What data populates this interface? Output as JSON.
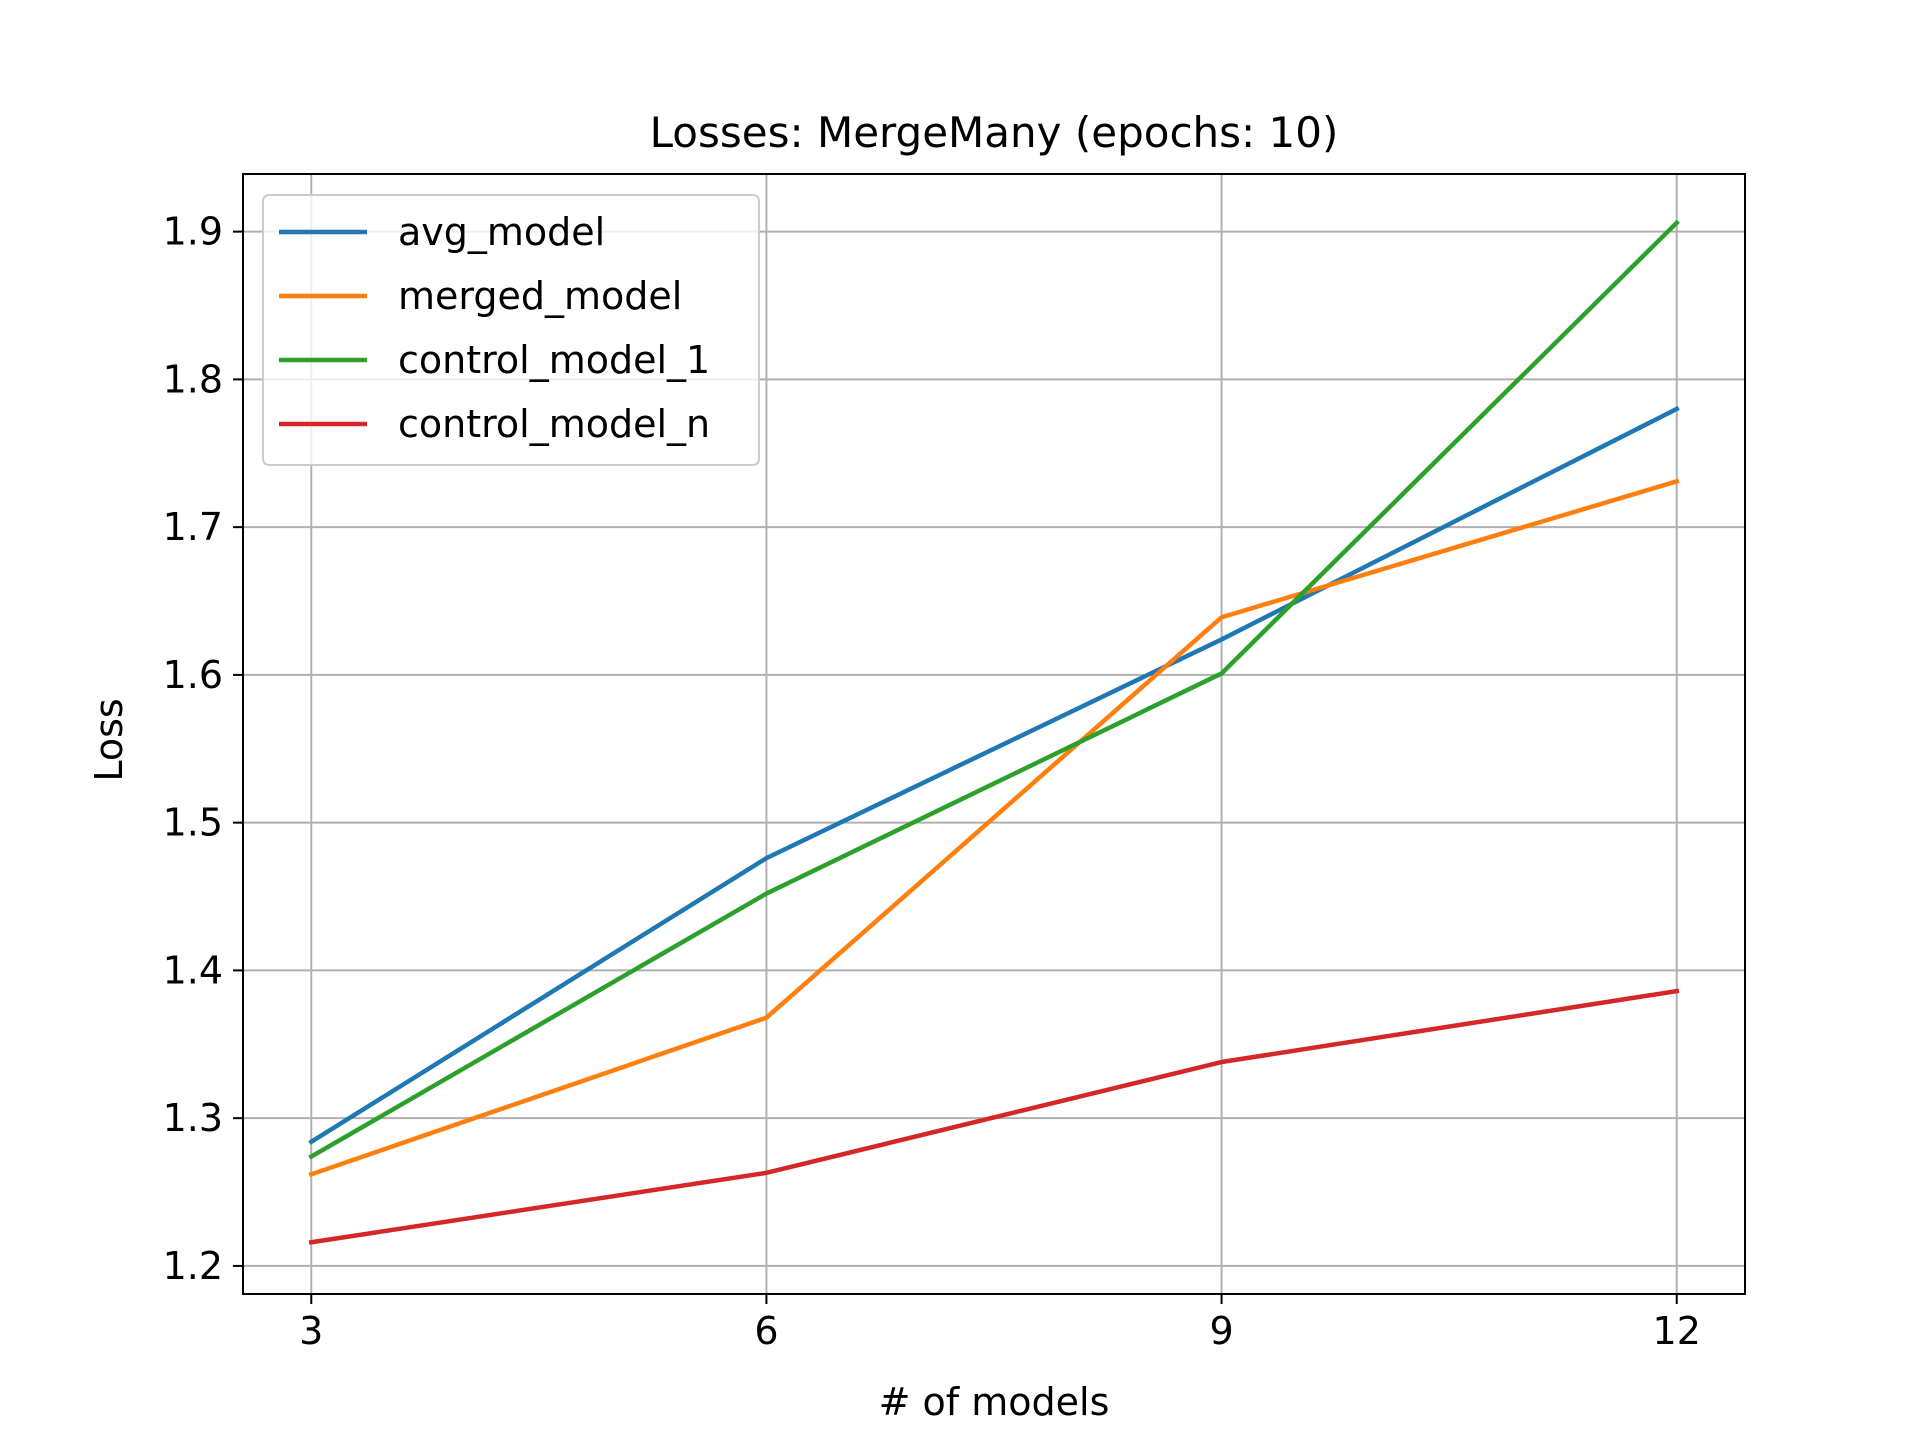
{
  "chart_data": {
    "type": "line",
    "title": "Losses: MergeMany (epochs: 10)",
    "xlabel": "# of models",
    "ylabel": "Loss",
    "x": [
      3,
      6,
      9,
      12
    ],
    "xticks": [
      "3",
      "6",
      "9",
      "12"
    ],
    "yticks": [
      "1.2",
      "1.3",
      "1.4",
      "1.5",
      "1.6",
      "1.7",
      "1.8",
      "1.9"
    ],
    "xlim": [
      2.55,
      12.45
    ],
    "ylim": [
      1.181,
      1.939
    ],
    "grid": true,
    "legend_position": "upper-left",
    "series": [
      {
        "name": "avg_model",
        "color": "#1f77b4",
        "values": [
          1.284,
          1.476,
          1.624,
          1.78
        ]
      },
      {
        "name": "merged_model",
        "color": "#ff7f0e",
        "values": [
          1.262,
          1.368,
          1.639,
          1.731
        ]
      },
      {
        "name": "control_model_1",
        "color": "#2ca02c",
        "values": [
          1.274,
          1.452,
          1.601,
          1.906
        ]
      },
      {
        "name": "control_model_n",
        "color": "#d62728",
        "values": [
          1.216,
          1.263,
          1.338,
          1.386
        ]
      }
    ]
  }
}
